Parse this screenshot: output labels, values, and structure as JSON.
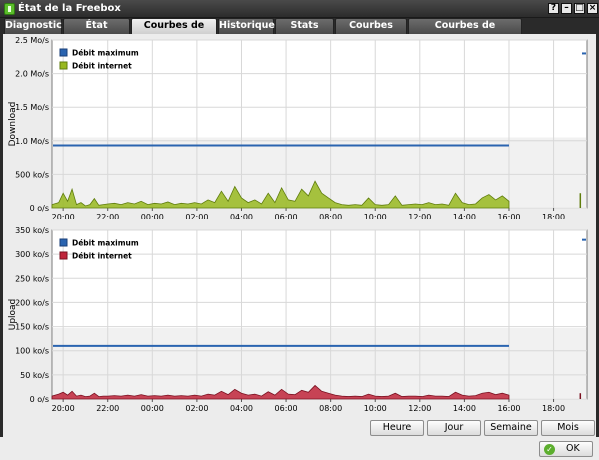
{
  "window": {
    "title": "État de la Freebox",
    "help_glyph": "?",
    "minimize_glyph": "–",
    "maximize_glyph": "□",
    "close_glyph": "×"
  },
  "tabs": [
    {
      "label": "Diagnostic",
      "active": false
    },
    {
      "label": "État Internet",
      "active": false
    },
    {
      "label": "Courbes de Débit",
      "active": true
    },
    {
      "label": "Historique",
      "active": false
    },
    {
      "label": "Stats xDSL",
      "active": false
    },
    {
      "label": "Courbes xDSL",
      "active": false
    },
    {
      "label": "Courbes de température",
      "active": false
    }
  ],
  "buttons": {
    "hour": "Heure",
    "day": "Jour",
    "week": "Semaine",
    "month": "Mois",
    "ok": "OK"
  },
  "colors": {
    "max_line": "#2a64b0",
    "download_fill": "#98b81e",
    "upload_fill": "#c0243a",
    "grid": "#d8d8d8"
  },
  "chart_data": [
    {
      "type": "area",
      "ylabel": "Download",
      "y_ticks": [
        "0 o/s",
        "500 ko/s",
        "1.0 Mo/s",
        "1.5 Mo/s",
        "2.0 Mo/s",
        "2.5 Mo/s"
      ],
      "ylim": [
        0,
        2.5
      ],
      "y_unit": "Mo/s",
      "x_ticks": [
        "20:00",
        "22:00",
        "00:00",
        "02:00",
        "04:00",
        "06:00",
        "08:00",
        "10:00",
        "12:00",
        "14:00",
        "16:00",
        "18:00"
      ],
      "xlim": [
        19.5,
        43.5
      ],
      "legend": [
        "Débit maximum",
        "Débit internet"
      ],
      "legend_position": "top-left",
      "max_line": {
        "name": "Débit maximum",
        "value": 0.93,
        "x_end": 40.0,
        "marker_value": 2.3
      },
      "series": {
        "name": "Débit internet",
        "x": [
          19.5,
          19.8,
          20.0,
          20.2,
          20.4,
          20.6,
          20.8,
          21.0,
          21.2,
          21.4,
          21.6,
          21.8,
          22.0,
          22.3,
          22.6,
          22.9,
          23.2,
          23.5,
          23.8,
          24.1,
          24.4,
          24.7,
          25.0,
          25.3,
          25.6,
          25.9,
          26.2,
          26.5,
          26.8,
          27.1,
          27.4,
          27.7,
          28.0,
          28.3,
          28.6,
          28.9,
          29.2,
          29.5,
          29.8,
          30.1,
          30.4,
          30.7,
          31.0,
          31.3,
          31.6,
          31.9,
          32.2,
          32.5,
          32.8,
          33.1,
          33.4,
          33.7,
          34.0,
          34.3,
          34.6,
          34.9,
          35.2,
          35.5,
          35.8,
          36.1,
          36.4,
          36.7,
          37.0,
          37.3,
          37.6,
          37.9,
          38.2,
          38.5,
          38.8,
          39.1,
          39.4,
          39.7,
          40.0
        ],
        "values": [
          0.05,
          0.08,
          0.22,
          0.1,
          0.28,
          0.05,
          0.08,
          0.03,
          0.05,
          0.14,
          0.04,
          0.05,
          0.06,
          0.07,
          0.05,
          0.08,
          0.06,
          0.1,
          0.05,
          0.07,
          0.06,
          0.09,
          0.05,
          0.07,
          0.06,
          0.08,
          0.06,
          0.12,
          0.08,
          0.25,
          0.1,
          0.32,
          0.15,
          0.08,
          0.12,
          0.06,
          0.22,
          0.08,
          0.3,
          0.12,
          0.1,
          0.28,
          0.18,
          0.4,
          0.22,
          0.15,
          0.08,
          0.05,
          0.04,
          0.05,
          0.04,
          0.15,
          0.05,
          0.04,
          0.05,
          0.18,
          0.04,
          0.05,
          0.06,
          0.05,
          0.08,
          0.05,
          0.06,
          0.04,
          0.22,
          0.08,
          0.05,
          0.06,
          0.15,
          0.2,
          0.12,
          0.18,
          0.1
        ],
        "tail_spike": {
          "x": 43.2,
          "value": 0.22
        }
      }
    },
    {
      "type": "area",
      "ylabel": "Upload",
      "y_ticks": [
        "0 o/s",
        "50 ko/s",
        "100 ko/s",
        "150 ko/s",
        "200 ko/s",
        "250 ko/s",
        "300 ko/s",
        "350 ko/s"
      ],
      "ylim": [
        0,
        350
      ],
      "y_unit": "ko/s",
      "x_ticks": [
        "20:00",
        "22:00",
        "00:00",
        "02:00",
        "04:00",
        "06:00",
        "08:00",
        "10:00",
        "12:00",
        "14:00",
        "16:00",
        "18:00"
      ],
      "xlim": [
        19.5,
        43.5
      ],
      "legend": [
        "Débit maximum",
        "Débit internet"
      ],
      "legend_position": "top-left",
      "max_line": {
        "name": "Débit maximum",
        "value": 110,
        "x_end": 40.0,
        "marker_value": 330
      },
      "series": {
        "name": "Débit internet",
        "x": [
          19.5,
          19.8,
          20.0,
          20.2,
          20.4,
          20.6,
          20.8,
          21.0,
          21.2,
          21.4,
          21.6,
          21.8,
          22.0,
          22.3,
          22.6,
          22.9,
          23.2,
          23.5,
          23.8,
          24.1,
          24.4,
          24.7,
          25.0,
          25.3,
          25.6,
          25.9,
          26.2,
          26.5,
          26.8,
          27.1,
          27.4,
          27.7,
          28.0,
          28.3,
          28.6,
          28.9,
          29.2,
          29.5,
          29.8,
          30.1,
          30.4,
          30.7,
          31.0,
          31.3,
          31.6,
          31.9,
          32.2,
          32.5,
          32.8,
          33.1,
          33.4,
          33.7,
          34.0,
          34.3,
          34.6,
          34.9,
          35.2,
          35.5,
          35.8,
          36.1,
          36.4,
          36.7,
          37.0,
          37.3,
          37.6,
          37.9,
          38.2,
          38.5,
          38.8,
          39.1,
          39.4,
          39.7,
          40.0
        ],
        "values": [
          6,
          10,
          14,
          8,
          16,
          6,
          8,
          5,
          6,
          12,
          5,
          6,
          6,
          7,
          6,
          8,
          6,
          9,
          6,
          7,
          6,
          8,
          6,
          7,
          6,
          8,
          6,
          10,
          8,
          16,
          9,
          20,
          12,
          8,
          10,
          6,
          15,
          8,
          20,
          10,
          9,
          18,
          14,
          28,
          16,
          12,
          8,
          6,
          5,
          6,
          5,
          10,
          6,
          5,
          6,
          12,
          5,
          6,
          6,
          5,
          8,
          6,
          6,
          5,
          14,
          8,
          6,
          7,
          12,
          14,
          9,
          12,
          8
        ],
        "tail_spike": {
          "x": 43.2,
          "value": 12
        }
      }
    }
  ]
}
